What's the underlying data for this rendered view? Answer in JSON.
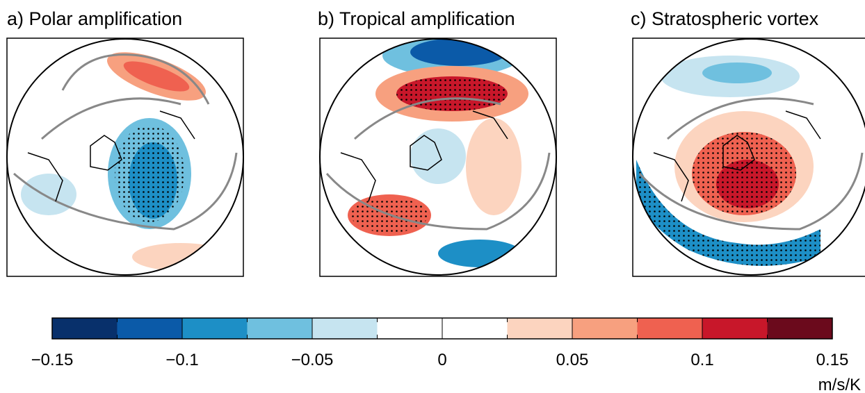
{
  "panels": [
    {
      "title": "a) Polar amplification"
    },
    {
      "title": "b) Tropical amplification"
    },
    {
      "title": "c) Stratospheric vortex"
    }
  ],
  "colorbar": {
    "lim": [
      -0.15,
      0.15
    ],
    "colors": [
      "#08306b",
      "#0b5aa8",
      "#1d8fc6",
      "#6fc0df",
      "#c6e4f0",
      "#ffffff",
      "#ffffff",
      "#fcd4bf",
      "#f7a07f",
      "#ef6150",
      "#c8172a",
      "#6b0a1c"
    ],
    "ticks": [
      {
        "value": -0.15,
        "label": "−0.15"
      },
      {
        "value": -0.1,
        "label": "−0.1"
      },
      {
        "value": -0.05,
        "label": "−0.05"
      },
      0,
      0.05,
      0.1,
      0.15
    ],
    "unit": "m/s/K"
  }
}
